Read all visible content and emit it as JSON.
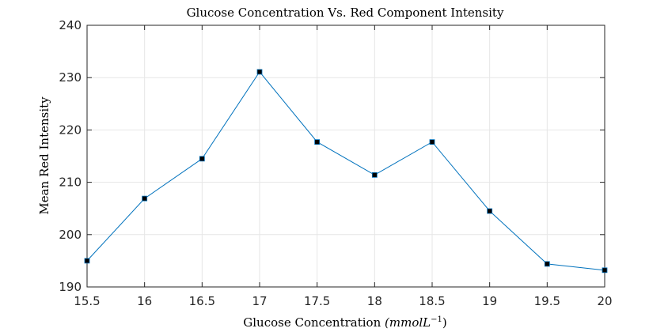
{
  "chart_data": {
    "type": "line",
    "title": "Glucose Concentration Vs. Red Component Intensity",
    "xlabel_main": "Glucose Concentration ",
    "xlabel_unit": "(mmolL",
    "xlabel_exp": "−1",
    "xlabel_close": ")",
    "ylabel": "Mean Red Intensity",
    "xlim": [
      15.5,
      20
    ],
    "ylim": [
      190,
      240
    ],
    "xticks": [
      "15.5",
      "16",
      "16.5",
      "17",
      "17.5",
      "18",
      "18.5",
      "19",
      "19.5",
      "20"
    ],
    "yticks": [
      "190",
      "200",
      "210",
      "220",
      "230",
      "240"
    ],
    "grid": true,
    "series": [
      {
        "x": [
          15.5,
          16,
          16.5,
          17,
          17.5,
          18,
          18.5,
          19,
          19.5,
          20
        ],
        "y": [
          195.0,
          206.9,
          214.5,
          231.1,
          217.7,
          211.4,
          217.7,
          204.5,
          194.4,
          193.2
        ],
        "line_color": "#0072bd",
        "marker_color": "#000000",
        "marker": "square"
      }
    ]
  }
}
